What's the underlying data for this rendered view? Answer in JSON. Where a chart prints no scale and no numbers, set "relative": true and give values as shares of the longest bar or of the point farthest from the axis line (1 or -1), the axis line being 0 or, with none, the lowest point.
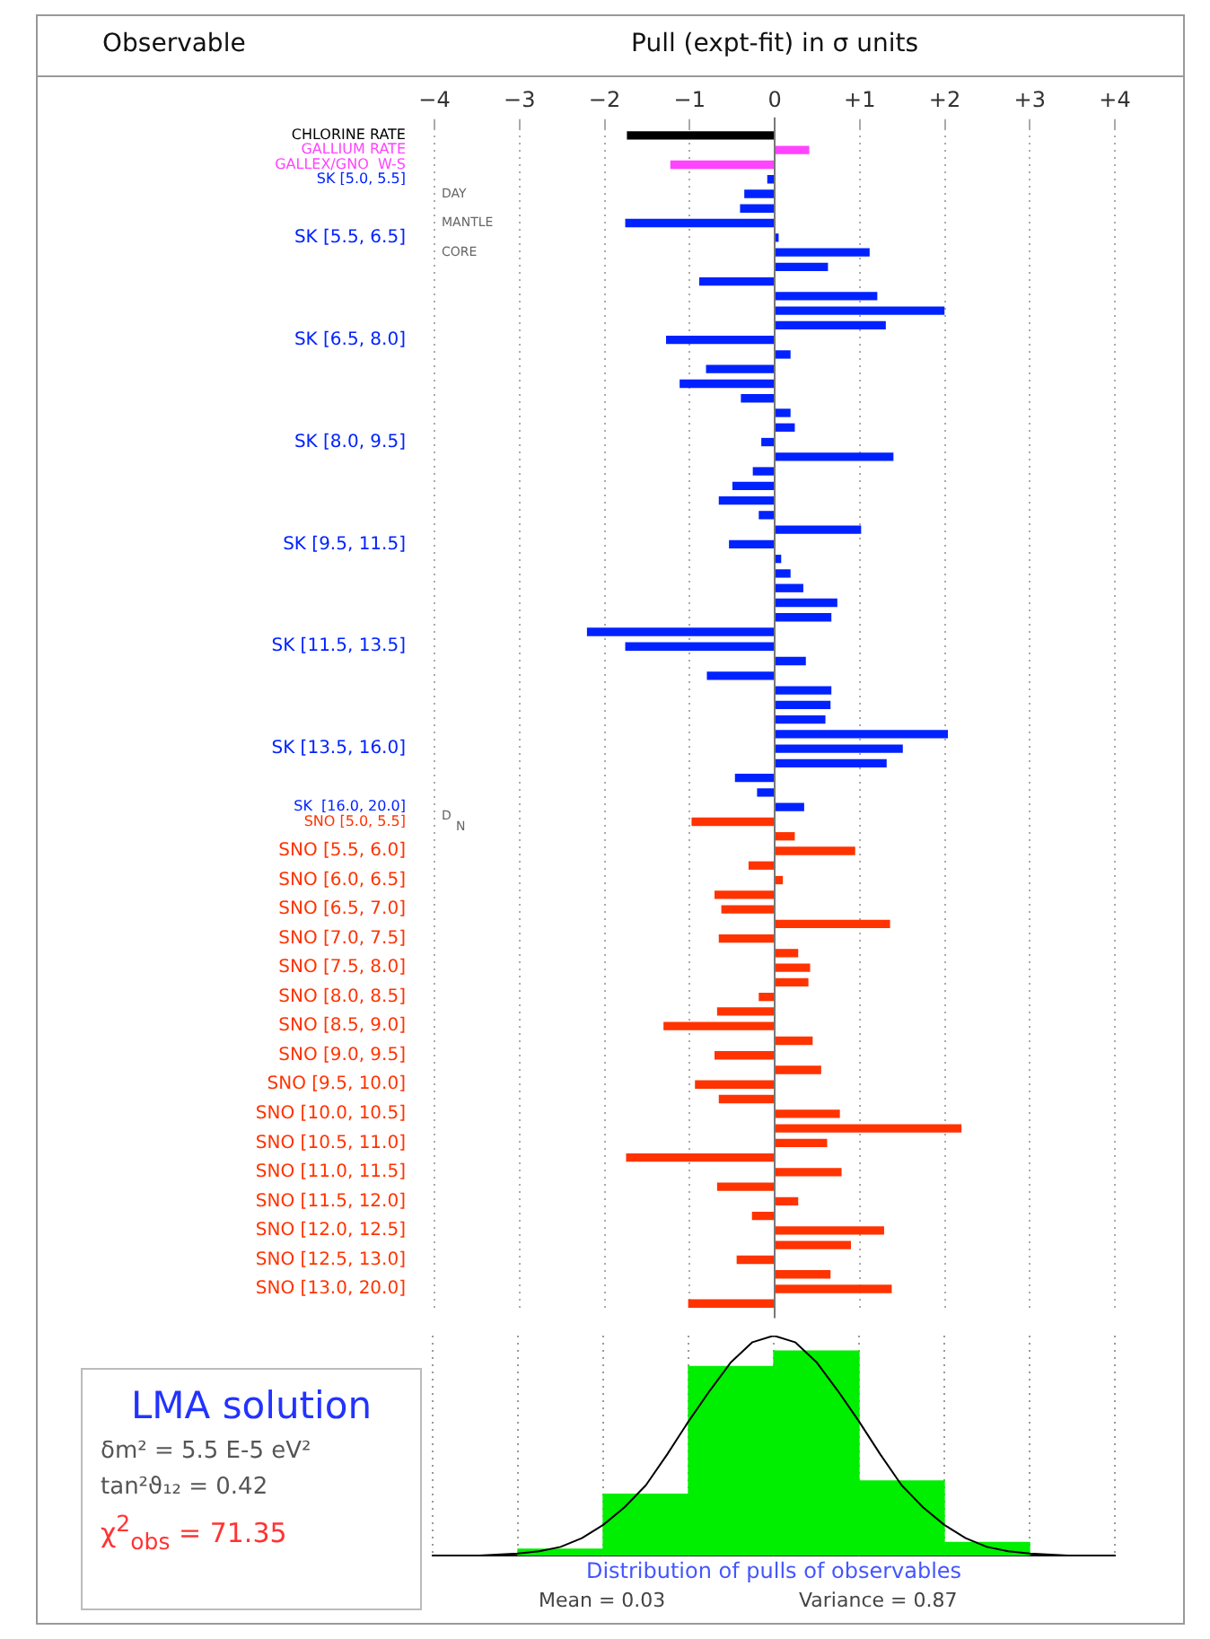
{
  "chart_data": [
    {
      "type": "bar",
      "orientation": "horizontal",
      "title": "Pull (expt-fit) in σ units",
      "ylabel": "Observable",
      "categories": [
        "CHLORINE RATE",
        "GALLIUM RATE",
        "GALLEX/GNO  W-S",
        "SK [5.0, 5.5]",
        null,
        null,
        null,
        "SK [5.5, 6.5]",
        null,
        null,
        null,
        null,
        null,
        null,
        "SK [6.5, 8.0]",
        null,
        null,
        null,
        null,
        null,
        null,
        "SK [8.0, 9.5]",
        null,
        null,
        null,
        null,
        null,
        null,
        "SK [9.5, 11.5]",
        null,
        null,
        null,
        null,
        null,
        null,
        "SK [11.5, 13.5]",
        null,
        null,
        null,
        null,
        null,
        null,
        "SK [13.5, 16.0]",
        null,
        null,
        null,
        "SK  [16.0, 20.0]",
        "SNO [5.0, 5.5]",
        null,
        "SNO [5.5, 6.0]",
        null,
        "SNO [6.0, 6.5]",
        null,
        "SNO [6.5, 7.0]",
        null,
        "SNO [7.0, 7.5]",
        null,
        "SNO [7.5, 8.0]",
        null,
        "SNO [8.0, 8.5]",
        null,
        "SNO [8.5, 9.0]",
        null,
        "SNO [9.0, 9.5]",
        null,
        "SNO [9.5, 10.0]",
        null,
        "SNO [10.0, 10.5]",
        null,
        "SNO [10.5, 11.0]",
        null,
        "SNO [11.0, 11.5]",
        null,
        "SNO [11.5, 12.0]",
        null,
        "SNO [12.0, 12.5]",
        null,
        "SNO [12.5, 13.0]",
        null,
        "SNO [13.0, 20.0]",
        null
      ],
      "values": [
        -1.73,
        0.4,
        -1.22,
        -0.08,
        -0.35,
        -0.4,
        -1.75,
        0.04,
        1.11,
        0.62,
        -0.88,
        1.2,
        1.99,
        1.3,
        -1.27,
        0.18,
        -0.8,
        -1.11,
        -0.39,
        0.18,
        0.23,
        -0.15,
        1.39,
        -0.25,
        -0.49,
        -0.65,
        -0.18,
        1.01,
        -0.53,
        0.07,
        0.18,
        0.33,
        0.73,
        0.66,
        -2.2,
        -1.75,
        0.36,
        -0.79,
        0.66,
        0.65,
        0.59,
        2.03,
        1.5,
        1.31,
        -0.46,
        -0.2,
        0.34,
        -0.97,
        0.23,
        0.94,
        -0.3,
        0.09,
        -0.7,
        -0.62,
        1.35,
        -0.65,
        0.27,
        0.41,
        0.39,
        -0.18,
        -0.67,
        -1.3,
        0.44,
        -0.7,
        0.54,
        -0.93,
        -0.65,
        0.76,
        2.19,
        0.61,
        -1.74,
        0.78,
        -0.67,
        0.27,
        -0.26,
        1.28,
        0.89,
        -0.44,
        0.65,
        1.37,
        -1.01
      ],
      "colors": [
        "#000000",
        "#ff44ff",
        "#ff44ff",
        "#0022ff",
        "#0022ff",
        "#0022ff",
        "#0022ff",
        "#0022ff",
        "#0022ff",
        "#0022ff",
        "#0022ff",
        "#0022ff",
        "#0022ff",
        "#0022ff",
        "#0022ff",
        "#0022ff",
        "#0022ff",
        "#0022ff",
        "#0022ff",
        "#0022ff",
        "#0022ff",
        "#0022ff",
        "#0022ff",
        "#0022ff",
        "#0022ff",
        "#0022ff",
        "#0022ff",
        "#0022ff",
        "#0022ff",
        "#0022ff",
        "#0022ff",
        "#0022ff",
        "#0022ff",
        "#0022ff",
        "#0022ff",
        "#0022ff",
        "#0022ff",
        "#0022ff",
        "#0022ff",
        "#0022ff",
        "#0022ff",
        "#0022ff",
        "#0022ff",
        "#0022ff",
        "#0022ff",
        "#0022ff",
        "#0022ff",
        "#ff3300",
        "#ff3300",
        "#ff3300",
        "#ff3300",
        "#ff3300",
        "#ff3300",
        "#ff3300",
        "#ff3300",
        "#ff3300",
        "#ff3300",
        "#ff3300",
        "#ff3300",
        "#ff3300",
        "#ff3300",
        "#ff3300",
        "#ff3300",
        "#ff3300",
        "#ff3300",
        "#ff3300",
        "#ff3300",
        "#ff3300",
        "#ff3300",
        "#ff3300",
        "#ff3300",
        "#ff3300",
        "#ff3300",
        "#ff3300",
        "#ff3300",
        "#ff3300",
        "#ff3300",
        "#ff3300",
        "#ff3300",
        "#ff3300",
        "#ff3300"
      ],
      "xlim": [
        -4,
        4
      ],
      "xticks": [
        {
          "value": -4,
          "label": "−4"
        },
        {
          "value": -3,
          "label": "−3"
        },
        {
          "value": -2,
          "label": "−2"
        },
        {
          "value": -1,
          "label": "−1"
        },
        {
          "value": 0,
          "label": "0"
        },
        {
          "value": 1,
          "label": "+1"
        },
        {
          "value": 2,
          "label": "+2"
        },
        {
          "value": 3,
          "label": "+3"
        },
        {
          "value": 4,
          "label": "+4"
        }
      ],
      "grid": "x",
      "annotations": [
        "DAY",
        "MANTLE",
        "CORE",
        "D",
        "N"
      ]
    },
    {
      "type": "histogram",
      "relative": true,
      "xlabel": "Distribution of pulls of observables",
      "bins": [
        -3,
        -2,
        -1,
        0,
        1,
        2,
        3
      ],
      "values": [
        0.03,
        0.28,
        0.86,
        0.93,
        0.34,
        0.06
      ],
      "color": "#00ee00",
      "series": [
        {
          "type": "line",
          "color": "#000000",
          "x": [
            -4,
            -3.5,
            -3,
            -2.75,
            -2.5,
            -2.25,
            -2,
            -1.75,
            -1.5,
            -1.25,
            -1,
            -0.75,
            -0.5,
            -0.25,
            0,
            0.25,
            0.5,
            0.75,
            1,
            1.25,
            1.5,
            1.75,
            2,
            2.25,
            2.5,
            2.75,
            3,
            3.5,
            4
          ],
          "values": [
            0,
            0,
            0.01,
            0.02,
            0.04,
            0.08,
            0.14,
            0.22,
            0.32,
            0.46,
            0.61,
            0.75,
            0.88,
            0.97,
            1,
            0.97,
            0.88,
            0.75,
            0.61,
            0.46,
            0.32,
            0.22,
            0.14,
            0.08,
            0.04,
            0.02,
            0.01,
            0,
            0
          ]
        }
      ],
      "xlim": [
        -4,
        4
      ],
      "xticks": [
        {
          "value": -4,
          "label": null
        },
        {
          "value": -3,
          "label": null
        },
        {
          "value": -2,
          "label": null
        },
        {
          "value": -1,
          "label": null
        },
        {
          "value": 0,
          "label": null
        },
        {
          "value": 1,
          "label": null
        },
        {
          "value": 2,
          "label": null
        },
        {
          "value": 3,
          "label": null
        },
        {
          "value": 4,
          "label": null
        }
      ],
      "tick_labels": false,
      "grid": "x",
      "annotations": [
        "Mean = 0.03",
        "Variance = 0.87"
      ]
    },
    {
      "type": "other",
      "title": "LMA solution",
      "annotations": [
        "δm² = 5.5 E-5 eV²",
        "tan²ϑ₁₂ = 0.42",
        "χ$^{2}$$_{obs}$ =  71.35"
      ]
    }
  ]
}
